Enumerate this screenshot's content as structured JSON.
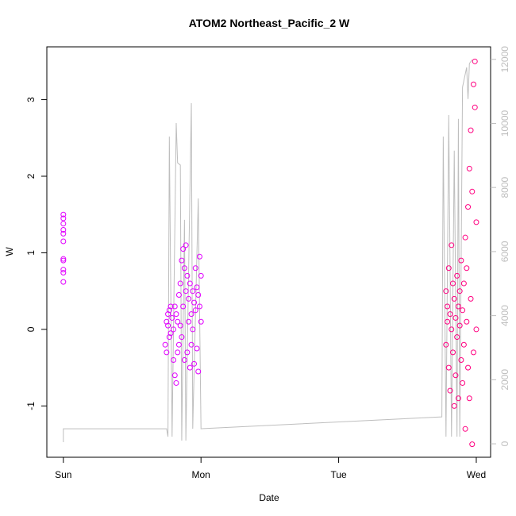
{
  "chart_data": {
    "type": "scatter",
    "title": "ATOM2 Northeast_Pacific_2 W",
    "xlabel": "Date",
    "ylabel": "W",
    "xlim": [
      -0.12,
      3.104
    ],
    "xticks": [
      {
        "value": 0,
        "label": "Sun"
      },
      {
        "value": 1,
        "label": "Mon"
      },
      {
        "value": 2,
        "label": "Tue"
      },
      {
        "value": 3,
        "label": "Wed"
      }
    ],
    "ylim": [
      -1.67,
      3.69
    ],
    "yticks": [
      -1,
      0,
      1,
      2,
      3
    ],
    "y2lim": [
      -420,
      12390
    ],
    "y2ticks": [
      0,
      2000,
      4000,
      6000,
      8000,
      10000,
      12000
    ],
    "grid": false,
    "series": [
      {
        "color": "#e100ff",
        "x": [
          0,
          0,
          0,
          0,
          0,
          0,
          0,
          0,
          0,
          0,
          0,
          0.74,
          0.75,
          0.75,
          0.76,
          0.76,
          0.77,
          0.77,
          0.78,
          0.78,
          0.79,
          0.8,
          0.8,
          0.81,
          0.81,
          0.82,
          0.82,
          0.83,
          0.83,
          0.84,
          0.84,
          0.85,
          0.85,
          0.86,
          0.86,
          0.87,
          0.87,
          0.88,
          0.88,
          0.89,
          0.89,
          0.9,
          0.9,
          0.91,
          0.91,
          0.92,
          0.92,
          0.93,
          0.93,
          0.94,
          0.94,
          0.95,
          0.95,
          0.96,
          0.96,
          0.97,
          0.97,
          0.98,
          0.98,
          0.99,
          0.99,
          1.0,
          1.0
        ],
        "values": [
          1.5,
          1.45,
          1.38,
          1.3,
          1.25,
          1.15,
          0.92,
          0.9,
          0.78,
          0.74,
          0.62,
          -0.2,
          0.1,
          -0.3,
          0.2,
          0.05,
          -0.1,
          0.25,
          0.3,
          -0.05,
          0.15,
          -0.4,
          0.0,
          0.3,
          -0.6,
          -0.7,
          0.2,
          0.1,
          -0.3,
          0.45,
          -0.2,
          0.6,
          0.05,
          0.9,
          -0.1,
          1.05,
          0.3,
          0.8,
          -0.4,
          1.1,
          0.5,
          0.7,
          -0.3,
          0.4,
          0.1,
          -0.5,
          0.6,
          0.2,
          -0.2,
          0.5,
          0.0,
          0.35,
          -0.45,
          0.25,
          0.8,
          0.55,
          -0.25,
          0.45,
          -0.55,
          0.3,
          0.95,
          0.1,
          0.7
        ]
      },
      {
        "color": "#ff0080",
        "x": [
          2.78,
          2.78,
          2.79,
          2.79,
          2.8,
          2.8,
          2.81,
          2.81,
          2.82,
          2.82,
          2.83,
          2.83,
          2.84,
          2.84,
          2.85,
          2.85,
          2.86,
          2.86,
          2.87,
          2.87,
          2.88,
          2.88,
          2.89,
          2.89,
          2.9,
          2.9,
          2.91,
          2.91,
          2.92,
          2.92,
          2.93,
          2.93,
          2.94,
          2.94,
          2.95,
          2.95,
          2.96,
          2.96,
          2.97,
          2.97,
          2.98,
          2.98,
          2.99,
          2.99,
          3.0,
          3.0
        ],
        "values": [
          0.5,
          -0.2,
          0.3,
          0.1,
          -0.5,
          0.8,
          0.2,
          -0.8,
          1.1,
          0.0,
          -0.3,
          0.6,
          -1.0,
          0.4,
          0.15,
          -0.6,
          0.7,
          -0.1,
          0.3,
          -0.9,
          0.5,
          0.05,
          -0.4,
          0.9,
          0.25,
          -0.7,
          0.6,
          -0.2,
          1.2,
          -1.3,
          0.1,
          0.8,
          -0.5,
          1.6,
          2.1,
          -0.9,
          0.4,
          2.6,
          -1.5,
          1.8,
          3.2,
          -0.3,
          3.5,
          2.9,
          0.0,
          1.4
        ]
      },
      {
        "type": "line",
        "axis": "y2",
        "color": "#bebebe",
        "x": [
          0,
          0,
          0.75,
          0.76,
          0.77,
          0.79,
          0.82,
          0.83,
          0.85,
          0.86,
          0.88,
          0.89,
          0.93,
          0.94,
          0.98,
          1.0,
          2.75,
          2.76,
          2.78,
          2.8,
          2.82,
          2.84,
          2.86,
          2.87,
          2.88,
          2.9,
          2.93,
          2.94,
          2.95,
          2.97
        ],
        "values": [
          50,
          470,
          470,
          220,
          9590,
          220,
          10010,
          8770,
          8700,
          100,
          6990,
          100,
          10630,
          470,
          7660,
          470,
          840,
          9590,
          220,
          10260,
          220,
          9150,
          220,
          10140,
          220,
          11130,
          11750,
          10760,
          11870,
          11990
        ]
      }
    ]
  }
}
